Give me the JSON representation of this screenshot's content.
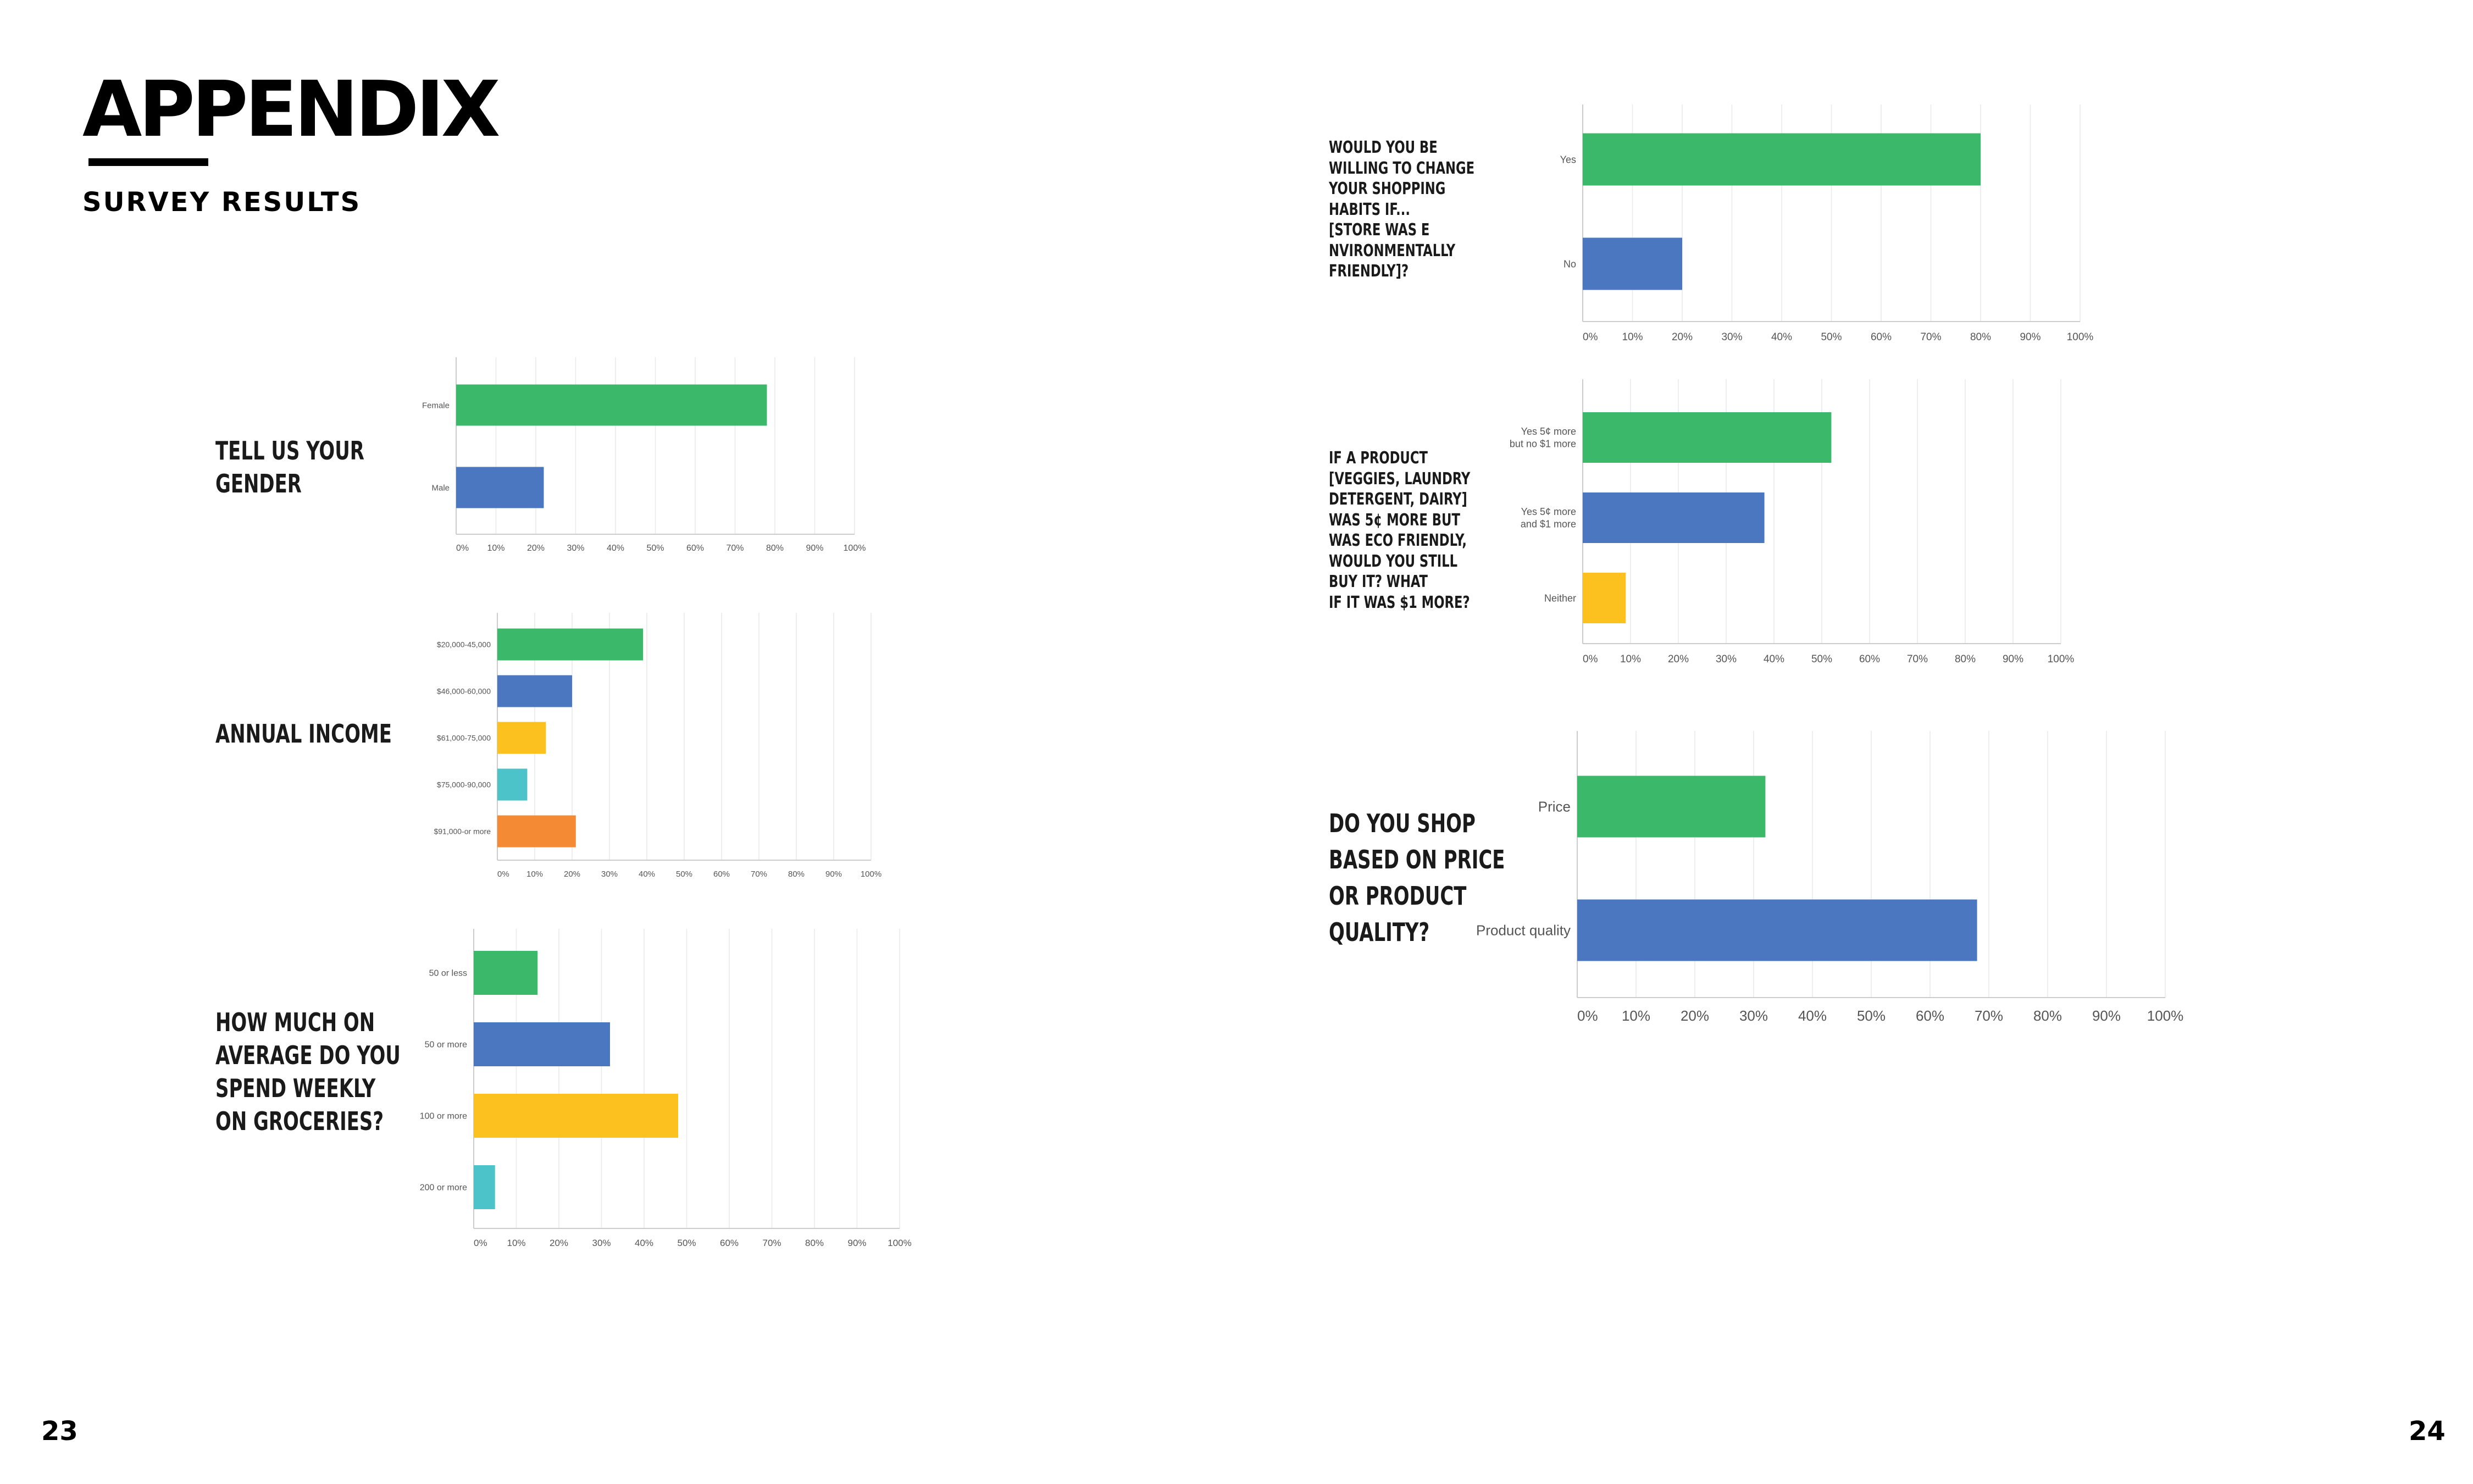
{
  "page": {
    "heading": "APPENDIX",
    "subheading": "SURVEY RESULTS",
    "page_left": "23",
    "page_right": "24"
  },
  "colors": {
    "green": "#3bb869",
    "blue": "#4a77c0",
    "yellow": "#fcc11f",
    "teal": "#4cc3c9",
    "orange": "#f58a35",
    "grid": "#e9e9e9",
    "axis": "#cccccc"
  },
  "chart_data": [
    {
      "id": "gender",
      "type": "bar",
      "orientation": "horizontal",
      "question": "TELL US YOUR\nGENDER",
      "categories": [
        "Female",
        "Male"
      ],
      "values": [
        78,
        22
      ],
      "colors": [
        "#3bb869",
        "#4a77c0"
      ],
      "xlim": [
        0,
        100
      ],
      "ticks": [
        "0%",
        "10%",
        "20%",
        "30%",
        "40%",
        "50%",
        "60%",
        "70%",
        "80%",
        "90%",
        "100%"
      ],
      "grid": true
    },
    {
      "id": "income",
      "type": "bar",
      "orientation": "horizontal",
      "question": "ANNUAL INCOME",
      "categories": [
        "$20,000-45,000",
        "$46,000-60,000",
        "$61,000-75,000",
        "$75,000-90,000",
        "$91,000-or more"
      ],
      "values": [
        39,
        20,
        13,
        8,
        21
      ],
      "colors": [
        "#3bb869",
        "#4a77c0",
        "#fcc11f",
        "#4cc3c9",
        "#f58a35"
      ],
      "xlim": [
        0,
        100
      ],
      "ticks": [
        "0%",
        "10%",
        "20%",
        "30%",
        "40%",
        "50%",
        "60%",
        "70%",
        "80%",
        "90%",
        "100%"
      ],
      "grid": true
    },
    {
      "id": "spend",
      "type": "bar",
      "orientation": "horizontal",
      "question": "HOW MUCH ON\nAVERAGE DO YOU\nSPEND WEEKLY\nON GROCERIES?",
      "categories": [
        "50 or less",
        "50 or more",
        "100 or more",
        "200 or more"
      ],
      "values": [
        15,
        32,
        48,
        5
      ],
      "colors": [
        "#3bb869",
        "#4a77c0",
        "#fcc11f",
        "#4cc3c9"
      ],
      "xlim": [
        0,
        100
      ],
      "ticks": [
        "0%",
        "10%",
        "20%",
        "30%",
        "40%",
        "50%",
        "60%",
        "70%",
        "80%",
        "90%",
        "100%"
      ],
      "grid": true
    },
    {
      "id": "habits",
      "type": "bar",
      "orientation": "horizontal",
      "question": "WOULD YOU BE\nWILLING TO CHANGE\nYOUR SHOPPING\nHABITS IF...\n[STORE WAS E\nNVIRONMENTALLY\nFRIENDLY]?",
      "categories": [
        "Yes",
        "No"
      ],
      "values": [
        80,
        20
      ],
      "colors": [
        "#3bb869",
        "#4a77c0"
      ],
      "xlim": [
        0,
        100
      ],
      "ticks": [
        "0%",
        "10%",
        "20%",
        "30%",
        "40%",
        "50%",
        "60%",
        "70%",
        "80%",
        "90%",
        "100%"
      ],
      "grid": true
    },
    {
      "id": "eco_price",
      "type": "bar",
      "orientation": "horizontal",
      "question": "IF A PRODUCT\n[VEGGIES, LAUNDRY\nDETERGENT, DAIRY]\nWAS 5¢ MORE BUT\nWAS ECO FRIENDLY,\nWOULD YOU STILL\nBUY IT? WHAT\nIF IT WAS $1 MORE?",
      "categories": [
        "Yes 5¢ more\nbut no $1 more",
        "Yes 5¢ more\nand $1 more",
        "Neither"
      ],
      "values": [
        52,
        38,
        9
      ],
      "colors": [
        "#3bb869",
        "#4a77c0",
        "#fcc11f"
      ],
      "xlim": [
        0,
        100
      ],
      "ticks": [
        "0%",
        "10%",
        "20%",
        "30%",
        "40%",
        "50%",
        "60%",
        "70%",
        "80%",
        "90%",
        "100%"
      ],
      "grid": true
    },
    {
      "id": "price_quality",
      "type": "bar",
      "orientation": "horizontal",
      "question": "DO YOU SHOP\nBASED ON PRICE\nOR PRODUCT\nQUALITY?",
      "categories": [
        "Price",
        "Product quality"
      ],
      "values": [
        32,
        68
      ],
      "colors": [
        "#3bb869",
        "#4a77c0"
      ],
      "xlim": [
        0,
        100
      ],
      "ticks": [
        "0%",
        "10%",
        "20%",
        "30%",
        "40%",
        "50%",
        "60%",
        "70%",
        "80%",
        "90%",
        "100%"
      ],
      "grid": true
    }
  ]
}
